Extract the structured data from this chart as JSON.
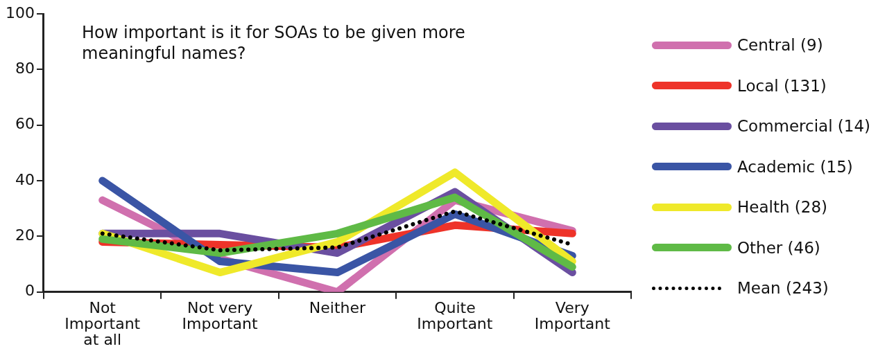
{
  "chart_data": {
    "type": "line",
    "title": "How important is it for SOAs to be given more meaningful names?",
    "categories": [
      "Not Important at all",
      "Not very Important",
      "Neither",
      "Quite Important",
      "Very Important"
    ],
    "series": [
      {
        "name": "Central (9)",
        "color": "#d070ae",
        "values": [
          33,
          12,
          0,
          33,
          22
        ]
      },
      {
        "name": "Local (131)",
        "color": "#ee3329",
        "values": [
          18,
          17,
          16,
          24,
          21
        ]
      },
      {
        "name": "Commercial (14)",
        "color": "#6a4fa0",
        "values": [
          21,
          21,
          14,
          36,
          7
        ]
      },
      {
        "name": "Academic (15)",
        "color": "#3a55a5",
        "values": [
          40,
          11,
          7,
          28,
          13
        ]
      },
      {
        "name": "Health (28)",
        "color": "#efe92a",
        "values": [
          21,
          7,
          18,
          43,
          11
        ]
      },
      {
        "name": "Other (46)",
        "color": "#5fba46",
        "values": [
          19,
          14,
          21,
          34,
          9
        ]
      },
      {
        "name": "Mean (243)",
        "color": "#000000",
        "line_style": "dotted",
        "values": [
          21,
          15,
          16,
          29,
          17
        ]
      }
    ],
    "ylim": [
      0,
      100
    ],
    "yticks": [
      0,
      20,
      40,
      60,
      80,
      100
    ],
    "grid": false,
    "legend": "right",
    "marker": "none",
    "line_style": "solid"
  }
}
